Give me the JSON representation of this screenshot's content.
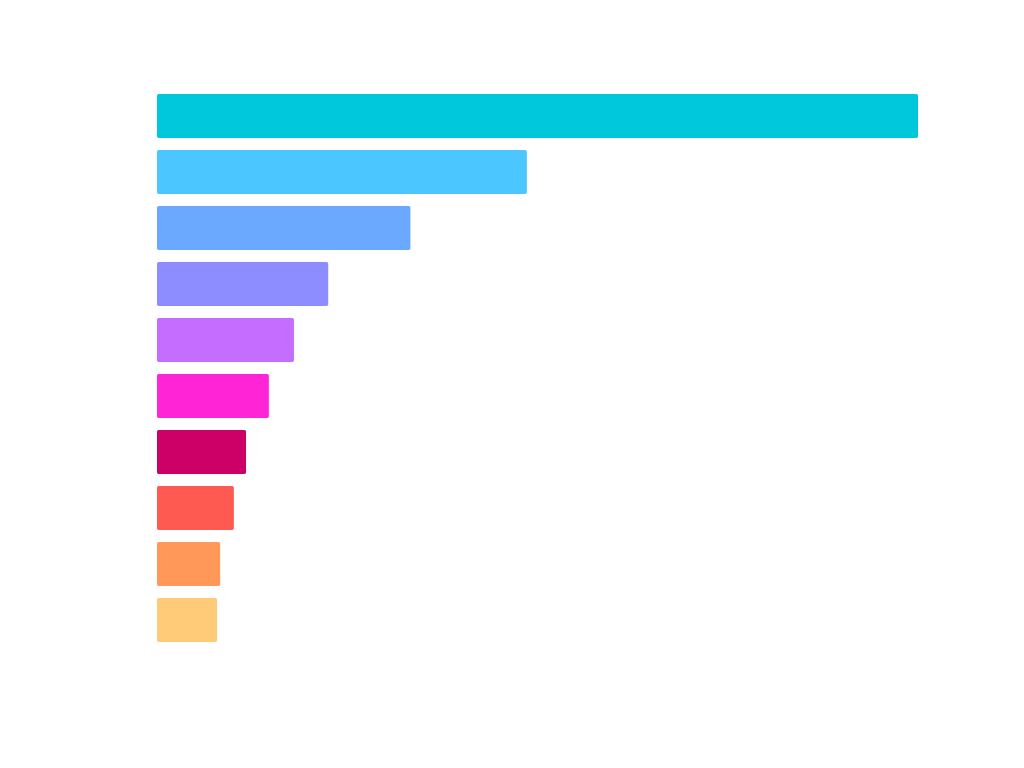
{
  "chart_data": {
    "type": "bar",
    "orientation": "horizontal",
    "title": "",
    "xlabel": "",
    "ylabel": "",
    "grid": false,
    "legend": "none",
    "xlim": [
      0,
      100
    ],
    "bars": [
      {
        "value": 100,
        "color": "#00C8DC"
      },
      {
        "value": 48.6,
        "color": "#4CC6FF"
      },
      {
        "value": 33.3,
        "color": "#6AA9FF"
      },
      {
        "value": 22.5,
        "color": "#8D8DFF"
      },
      {
        "value": 18.0,
        "color": "#C46DFF"
      },
      {
        "value": 14.7,
        "color": "#FF25D6"
      },
      {
        "value": 11.7,
        "color": "#CC0066"
      },
      {
        "value": 10.1,
        "color": "#FF5A52"
      },
      {
        "value": 8.3,
        "color": "#FF9858"
      },
      {
        "value": 7.9,
        "color": "#FFCB79"
      }
    ]
  }
}
